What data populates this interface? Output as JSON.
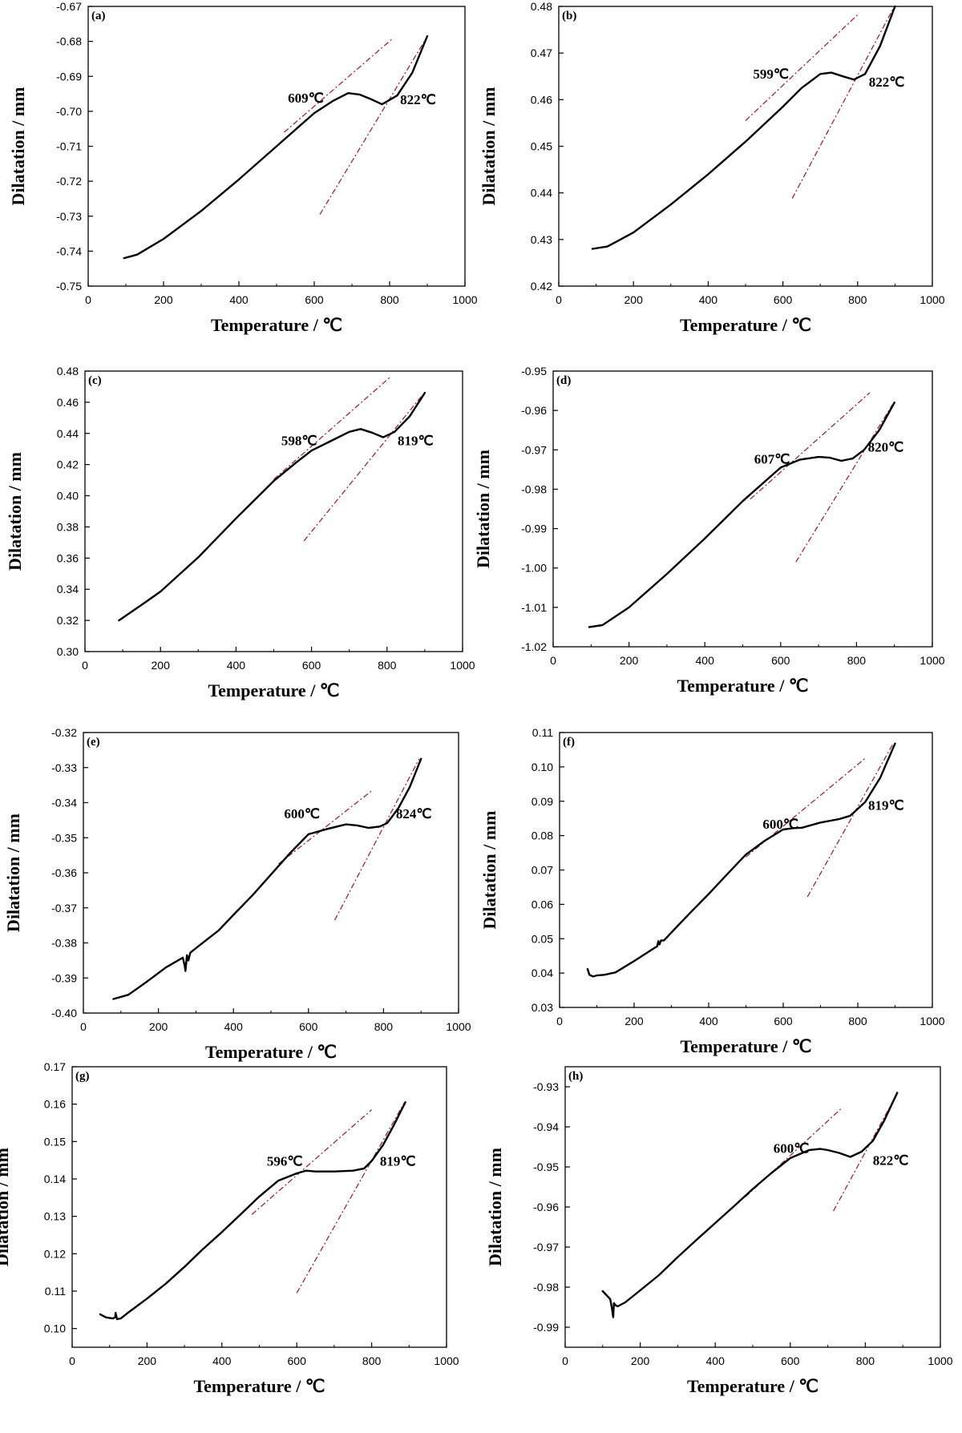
{
  "figure": {
    "colors": {
      "curve": "#000000",
      "tangent": "#9b2a32",
      "axis": "#000000"
    }
  },
  "chart_data": [
    {
      "id": "a",
      "type": "line",
      "panel_label": "(a)",
      "xlabel": "Temperature / ℃",
      "ylabel": "Dilatation / mm",
      "xlim": [
        0,
        1000
      ],
      "ylim": [
        -0.75,
        -0.67
      ],
      "xticks": [
        0,
        200,
        400,
        600,
        800,
        1000
      ],
      "yticks": [
        -0.75,
        -0.74,
        -0.73,
        -0.72,
        -0.71,
        -0.7,
        -0.69,
        -0.68,
        -0.67
      ],
      "ytick_labels": [
        "-0.75",
        "-0.74",
        "-0.73",
        "-0.72",
        "-0.71",
        "-0.70",
        "-0.69",
        "-0.68",
        "-0.67"
      ],
      "x": [
        95,
        130,
        200,
        300,
        400,
        500,
        600,
        650,
        690,
        720,
        750,
        780,
        820,
        860,
        900
      ],
      "y": [
        -0.742,
        -0.741,
        -0.7365,
        -0.7285,
        -0.7195,
        -0.71,
        -0.7005,
        -0.697,
        -0.6948,
        -0.6952,
        -0.6965,
        -0.698,
        -0.6955,
        -0.689,
        -0.6785
      ],
      "tangents": [
        {
          "x": [
            520,
            810
          ],
          "y": [
            -0.706,
            -0.679
          ]
        },
        {
          "x": [
            615,
            895
          ],
          "y": [
            -0.7295,
            -0.6795
          ]
        }
      ],
      "annotations": [
        {
          "text": "609℃",
          "x": 530,
          "y": -0.6975
        },
        {
          "text": "822℃",
          "x": 828,
          "y": -0.698
        }
      ]
    },
    {
      "id": "b",
      "type": "line",
      "panel_label": "(b)",
      "xlabel": "Temperature / ℃",
      "ylabel": "Dilatation / mm",
      "xlim": [
        0,
        1000
      ],
      "ylim": [
        0.42,
        0.48
      ],
      "xticks": [
        0,
        200,
        400,
        600,
        800,
        1000
      ],
      "yticks": [
        0.42,
        0.43,
        0.44,
        0.45,
        0.46,
        0.47,
        0.48
      ],
      "ytick_labels": [
        "0.42",
        "0.43",
        "0.44",
        "0.45",
        "0.46",
        "0.47",
        "0.48"
      ],
      "x": [
        90,
        130,
        200,
        300,
        400,
        500,
        600,
        650,
        700,
        730,
        760,
        790,
        820,
        860,
        900
      ],
      "y": [
        0.428,
        0.4285,
        0.4315,
        0.4375,
        0.444,
        0.451,
        0.4585,
        0.4625,
        0.4655,
        0.4658,
        0.465,
        0.4643,
        0.4655,
        0.4715,
        0.48
      ],
      "tangents": [
        {
          "x": [
            500,
            800
          ],
          "y": [
            0.4555,
            0.4782
          ]
        },
        {
          "x": [
            625,
            895
          ],
          "y": [
            0.4388,
            0.4795
          ]
        }
      ],
      "annotations": [
        {
          "text": "599℃",
          "x": 520,
          "y": 0.4645
        },
        {
          "text": "822℃",
          "x": 830,
          "y": 0.4628
        }
      ]
    },
    {
      "id": "c",
      "type": "line",
      "panel_label": "(c)",
      "xlabel": "Temperature / ℃",
      "ylabel": "Dilatation / mm",
      "xlim": [
        0,
        1000
      ],
      "ylim": [
        0.3,
        0.48
      ],
      "xticks": [
        0,
        200,
        400,
        600,
        800,
        1000
      ],
      "yticks": [
        0.3,
        0.32,
        0.34,
        0.36,
        0.38,
        0.4,
        0.42,
        0.44,
        0.46,
        0.48
      ],
      "ytick_labels": [
        "0.30",
        "0.32",
        "0.34",
        "0.36",
        "0.38",
        "0.40",
        "0.42",
        "0.44",
        "0.46",
        "0.48"
      ],
      "x": [
        90,
        150,
        200,
        300,
        400,
        500,
        560,
        600,
        650,
        700,
        730,
        760,
        790,
        820,
        860,
        900
      ],
      "y": [
        0.32,
        0.33,
        0.3385,
        0.3605,
        0.3855,
        0.4095,
        0.4215,
        0.429,
        0.435,
        0.441,
        0.4428,
        0.4405,
        0.4375,
        0.441,
        0.451,
        0.466
      ],
      "tangents": [
        {
          "x": [
            500,
            810
          ],
          "y": [
            0.4105,
            0.4765
          ]
        },
        {
          "x": [
            580,
            895
          ],
          "y": [
            0.371,
            0.465
          ]
        }
      ],
      "annotations": [
        {
          "text": "598℃",
          "x": 520,
          "y": 0.4325
        },
        {
          "text": "819℃",
          "x": 828,
          "y": 0.4325
        }
      ]
    },
    {
      "id": "d",
      "type": "line",
      "panel_label": "(d)",
      "xlabel": "Temperature / ℃",
      "ylabel": "Dilatation / mm",
      "xlim": [
        0,
        1000
      ],
      "ylim": [
        -1.02,
        -0.95
      ],
      "xticks": [
        0,
        200,
        400,
        600,
        800,
        1000
      ],
      "yticks": [
        -1.02,
        -1.01,
        -1.0,
        -0.99,
        -0.98,
        -0.97,
        -0.96,
        -0.95
      ],
      "ytick_labels": [
        "-1.02",
        "-1.01",
        "-1.00",
        "-0.99",
        "-0.98",
        "-0.97",
        "-0.96",
        "-0.95"
      ],
      "x": [
        95,
        130,
        200,
        300,
        400,
        500,
        600,
        650,
        700,
        730,
        760,
        790,
        820,
        860,
        900
      ],
      "y": [
        -1.015,
        -1.0145,
        -1.01,
        -1.0015,
        -0.9925,
        -0.983,
        -0.9745,
        -0.9725,
        -0.9718,
        -0.972,
        -0.9728,
        -0.9722,
        -0.97,
        -0.965,
        -0.958
      ],
      "tangents": [
        {
          "x": [
            520,
            835
          ],
          "y": [
            -0.9825,
            -0.9555
          ]
        },
        {
          "x": [
            640,
            895
          ],
          "y": [
            -0.9985,
            -0.9585
          ]
        }
      ],
      "annotations": [
        {
          "text": "607℃",
          "x": 530,
          "y": -0.9735
        },
        {
          "text": "820℃",
          "x": 830,
          "y": -0.9705
        }
      ]
    },
    {
      "id": "e",
      "type": "line",
      "panel_label": "(e)",
      "xlabel": "Temperature / ℃",
      "ylabel": "Dilatation / mm",
      "xlim": [
        0,
        1000
      ],
      "ylim": [
        -0.4,
        -0.32
      ],
      "xticks": [
        0,
        200,
        400,
        600,
        800,
        1000
      ],
      "yticks": [
        -0.4,
        -0.39,
        -0.38,
        -0.37,
        -0.36,
        -0.35,
        -0.34,
        -0.33,
        -0.32
      ],
      "ytick_labels": [
        "-0.40",
        "-0.39",
        "-0.38",
        "-0.37",
        "-0.36",
        "-0.35",
        "-0.34",
        "-0.33",
        "-0.32"
      ],
      "x": [
        80,
        120,
        170,
        220,
        265,
        270,
        272,
        276,
        280,
        285,
        300,
        330,
        360,
        400,
        450,
        500,
        550,
        600,
        650,
        700,
        730,
        760,
        790,
        810,
        840,
        870,
        900
      ],
      "y": [
        -0.396,
        -0.3948,
        -0.391,
        -0.387,
        -0.3842,
        -0.3865,
        -0.388,
        -0.3835,
        -0.385,
        -0.3828,
        -0.3815,
        -0.379,
        -0.3765,
        -0.372,
        -0.3665,
        -0.3605,
        -0.3545,
        -0.349,
        -0.3475,
        -0.3462,
        -0.3465,
        -0.3472,
        -0.3468,
        -0.3458,
        -0.3415,
        -0.3355,
        -0.3275
      ],
      "tangents": [
        {
          "x": [
            520,
            770
          ],
          "y": [
            -0.3575,
            -0.3365
          ]
        },
        {
          "x": [
            670,
            895
          ],
          "y": [
            -0.3735,
            -0.3275
          ]
        }
      ],
      "annotations": [
        {
          "text": "600℃",
          "x": 535,
          "y": -0.3445
        },
        {
          "text": "824℃",
          "x": 833,
          "y": -0.3445
        }
      ]
    },
    {
      "id": "f",
      "type": "line",
      "panel_label": "(f)",
      "xlabel": "Temperature / ℃",
      "ylabel": "Dilatation / mm",
      "xlim": [
        0,
        1000
      ],
      "ylim": [
        0.03,
        0.11
      ],
      "xticks": [
        0,
        200,
        400,
        600,
        800,
        1000
      ],
      "yticks": [
        0.03,
        0.04,
        0.05,
        0.06,
        0.07,
        0.08,
        0.09,
        0.1,
        0.11
      ],
      "ytick_labels": [
        "0.03",
        "0.04",
        "0.05",
        "0.06",
        "0.07",
        "0.08",
        "0.09",
        "0.10",
        "0.11"
      ],
      "x": [
        75,
        80,
        90,
        100,
        120,
        150,
        200,
        250,
        262,
        265,
        268,
        272,
        280,
        300,
        350,
        400,
        450,
        500,
        550,
        600,
        630,
        650,
        700,
        750,
        780,
        820,
        860,
        900
      ],
      "y": [
        0.0412,
        0.0395,
        0.039,
        0.0393,
        0.0395,
        0.0402,
        0.0435,
        0.047,
        0.0478,
        0.0493,
        0.0483,
        0.0495,
        0.0495,
        0.0518,
        0.0575,
        0.063,
        0.0688,
        0.0745,
        0.0785,
        0.0818,
        0.0822,
        0.0823,
        0.0838,
        0.0848,
        0.0858,
        0.0898,
        0.0968,
        0.1068
      ],
      "tangents": [
        {
          "x": [
            500,
            820
          ],
          "y": [
            0.0738,
            0.1025
          ]
        },
        {
          "x": [
            665,
            895
          ],
          "y": [
            0.0622,
            0.1068
          ]
        }
      ],
      "annotations": [
        {
          "text": "600℃",
          "x": 545,
          "y": 0.082
        },
        {
          "text": "819℃",
          "x": 828,
          "y": 0.0875
        }
      ]
    },
    {
      "id": "g",
      "type": "line",
      "panel_label": "(g)",
      "xlabel": "Temperature / ℃",
      "ylabel": "Dilatation / mm",
      "xlim": [
        0,
        1000
      ],
      "ylim": [
        0.095,
        0.17
      ],
      "xticks": [
        0,
        200,
        400,
        600,
        800,
        1000
      ],
      "yticks": [
        0.1,
        0.11,
        0.12,
        0.13,
        0.14,
        0.15,
        0.16,
        0.17
      ],
      "ytick_labels": [
        "0.10",
        "0.11",
        "0.12",
        "0.13",
        "0.14",
        "0.15",
        "0.16",
        "0.17"
      ],
      "x": [
        75,
        90,
        108,
        115,
        116,
        120,
        130,
        150,
        200,
        250,
        300,
        350,
        400,
        450,
        500,
        550,
        600,
        625,
        650,
        700,
        750,
        780,
        800,
        830,
        860,
        890
      ],
      "y": [
        0.1038,
        0.103,
        0.1027,
        0.103,
        0.1042,
        0.1025,
        0.1027,
        0.1043,
        0.108,
        0.112,
        0.1165,
        0.1213,
        0.1258,
        0.1305,
        0.1353,
        0.1395,
        0.1415,
        0.1422,
        0.142,
        0.142,
        0.1422,
        0.1428,
        0.1448,
        0.149,
        0.1545,
        0.1605
      ],
      "tangents": [
        {
          "x": [
            480,
            800
          ],
          "y": [
            0.1305,
            0.1585
          ]
        },
        {
          "x": [
            600,
            888
          ],
          "y": [
            0.1095,
            0.1605
          ]
        }
      ],
      "annotations": [
        {
          "text": "596℃",
          "x": 520,
          "y": 0.1435
        },
        {
          "text": "819℃",
          "x": 822,
          "y": 0.1435
        }
      ]
    },
    {
      "id": "h",
      "type": "line",
      "panel_label": "(h)",
      "xlabel": "Temperature / ℃",
      "ylabel": "Dilatation / mm",
      "xlim": [
        0,
        1000
      ],
      "ylim": [
        -0.995,
        -0.925
      ],
      "xticks": [
        0,
        200,
        400,
        600,
        800,
        1000
      ],
      "yticks": [
        -0.99,
        -0.98,
        -0.97,
        -0.96,
        -0.95,
        -0.94,
        -0.93
      ],
      "ytick_labels": [
        "-0.99",
        "-0.98",
        "-0.97",
        "-0.96",
        "-0.95",
        "-0.94",
        "-0.93"
      ],
      "x": [
        100,
        110,
        120,
        125,
        128,
        130,
        134,
        140,
        160,
        200,
        250,
        300,
        350,
        400,
        450,
        500,
        550,
        600,
        650,
        680,
        700,
        730,
        760,
        790,
        820,
        850,
        885
      ],
      "y": [
        -0.981,
        -0.982,
        -0.983,
        -0.9855,
        -0.9875,
        -0.984,
        -0.9845,
        -0.9848,
        -0.9838,
        -0.9808,
        -0.977,
        -0.9725,
        -0.9682,
        -0.964,
        -0.9598,
        -0.9555,
        -0.9515,
        -0.9478,
        -0.9458,
        -0.9455,
        -0.9458,
        -0.9465,
        -0.9475,
        -0.9462,
        -0.9435,
        -0.9385,
        -0.9315
      ],
      "tangents": [
        {
          "x": [
            480,
            735
          ],
          "y": [
            -0.9575,
            -0.9355
          ]
        },
        {
          "x": [
            715,
            880
          ],
          "y": [
            -0.961,
            -0.9325
          ]
        }
      ],
      "annotations": [
        {
          "text": "600℃",
          "x": 555,
          "y": -0.9465
        },
        {
          "text": "822℃",
          "x": 820,
          "y": -0.9495
        }
      ]
    }
  ]
}
